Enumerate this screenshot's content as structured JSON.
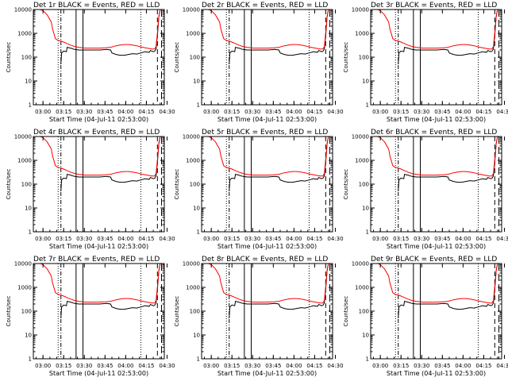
{
  "chart_data": {
    "type": "line",
    "layout": "3x3 grid",
    "y_scale": "log",
    "ylim": [
      1,
      10000
    ],
    "ylabel": "Counts/sec",
    "xlabel": "Start Time (04-Jul-11 02:53:00)",
    "x_unit": "minutes",
    "xlim": [
      0,
      95
    ],
    "x_tick_values": [
      7,
      22,
      37,
      52,
      67,
      82,
      97
    ],
    "x_tick_labels": [
      "03:00",
      "03:15",
      "03:30",
      "03:45",
      "04:00",
      "04:15",
      "04:30"
    ],
    "y_tick_values": [
      1,
      10,
      100,
      1000,
      10000
    ],
    "y_tick_labels": [
      "1",
      "10",
      "100",
      "1000",
      "10000"
    ],
    "series_colors": {
      "Events": "#000000",
      "LLD": "#ff0000"
    },
    "vertical_lines": {
      "solid": [
        31,
        36
      ],
      "dashdot": [
        20
      ],
      "dotted": [
        18,
        78
      ],
      "dashed": [
        90
      ],
      "dashed_long": [
        93
      ]
    },
    "panels": [
      {
        "title": "Det 1r BLACK = Events, RED = LLD"
      },
      {
        "title": "Det 2r BLACK = Events, RED = LLD"
      },
      {
        "title": "Det 3r BLACK = Events, RED = LLD"
      },
      {
        "title": "Det 4r BLACK = Events, RED = LLD"
      },
      {
        "title": "Det 5r BLACK = Events, RED = LLD"
      },
      {
        "title": "Det 6r BLACK = Events, RED = LLD"
      },
      {
        "title": "Det 7r BLACK = Events, RED = LLD"
      },
      {
        "title": "Det 8r BLACK = Events, RED = LLD"
      },
      {
        "title": "Det 9r BLACK = Events, RED = LLD"
      }
    ],
    "series": [
      {
        "name": "Events",
        "x": [
          20,
          20.5,
          22,
          24,
          24.5,
          27,
          30,
          33,
          38,
          43,
          48,
          53,
          56,
          57,
          60,
          63,
          66,
          69,
          72,
          75,
          78,
          81,
          84,
          85,
          86,
          87,
          88,
          89,
          90,
          91,
          92,
          93
        ],
        "y": [
          50,
          150,
          180,
          170,
          260,
          240,
          210,
          200,
          200,
          200,
          200,
          210,
          200,
          150,
          130,
          120,
          120,
          130,
          140,
          135,
          150,
          170,
          160,
          190,
          180,
          170,
          175,
          220,
          800,
          5000,
          10000,
          10000
        ]
      },
      {
        "name": "LLD",
        "x": [
          5,
          7,
          10,
          13,
          14,
          16,
          18,
          20,
          22,
          24,
          27,
          30,
          33,
          38,
          43,
          48,
          53,
          56,
          60,
          63,
          66,
          69,
          72,
          75,
          78,
          81,
          84,
          86,
          88,
          89,
          90,
          91,
          92,
          93
        ],
        "y": [
          10000,
          9000,
          6000,
          3000,
          1500,
          600,
          500,
          480,
          430,
          380,
          320,
          280,
          260,
          240,
          240,
          240,
          250,
          260,
          300,
          320,
          340,
          340,
          320,
          300,
          270,
          250,
          230,
          220,
          220,
          280,
          1000,
          5000,
          10000,
          10000
        ]
      }
    ]
  }
}
